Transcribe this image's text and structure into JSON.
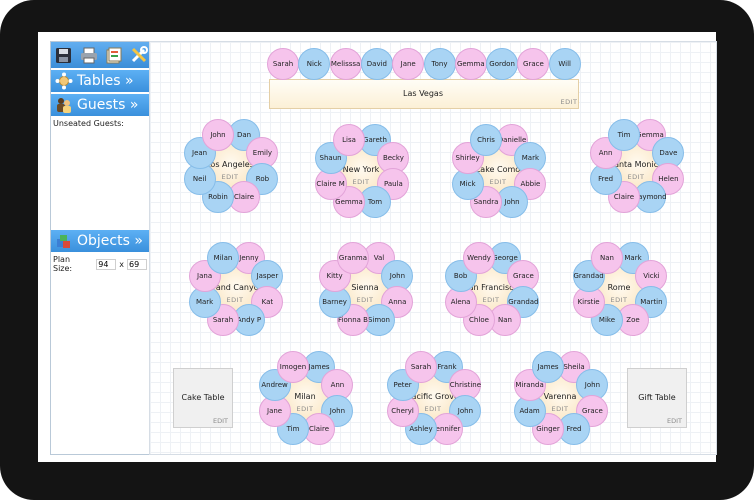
{
  "sidebar": {
    "toolbar": [
      {
        "name": "save-icon"
      },
      {
        "name": "print-icon"
      },
      {
        "name": "export-icon"
      },
      {
        "name": "settings-icon"
      }
    ],
    "tables_label": "Tables »",
    "guests_label": "Guests »",
    "unseated_label": "Unseated Guests:",
    "objects_label": "Objects »",
    "plan_size_label": "Plan Size:",
    "plan_width": "94",
    "plan_x": "x",
    "plan_height": "69"
  },
  "colors": {
    "accent": "#3c8ed8",
    "seat_blue": "#a9d4f4",
    "seat_pink": "#f6c4ec",
    "table": "#fbe8c8"
  },
  "banquet": {
    "name": "Las Vegas",
    "edit": "EDIT",
    "guests": [
      {
        "n": "Sarah",
        "c": "pink"
      },
      {
        "n": "Nick",
        "c": "blue"
      },
      {
        "n": "Melisssa",
        "c": "pink"
      },
      {
        "n": "David",
        "c": "blue"
      },
      {
        "n": "Jane",
        "c": "pink"
      },
      {
        "n": "Tony",
        "c": "blue"
      },
      {
        "n": "Gemma",
        "c": "pink"
      },
      {
        "n": "Gordon",
        "c": "blue"
      },
      {
        "n": "Grace",
        "c": "pink"
      },
      {
        "n": "Will",
        "c": "blue"
      }
    ]
  },
  "tables": [
    {
      "name": "Los Angeles",
      "edit": "EDIT",
      "guests": [
        {
          "n": "Dan",
          "c": "blue"
        },
        {
          "n": "Emily",
          "c": "pink"
        },
        {
          "n": "Rob",
          "c": "blue"
        },
        {
          "n": "Claire",
          "c": "pink"
        },
        {
          "n": "Robin",
          "c": "blue"
        },
        {
          "n": "Neil",
          "c": "blue"
        },
        {
          "n": "Jean",
          "c": "blue"
        },
        {
          "n": "John",
          "c": "pink"
        }
      ]
    },
    {
      "name": "New York",
      "edit": "EDIT",
      "guests": [
        {
          "n": "Gareth",
          "c": "blue"
        },
        {
          "n": "Becky",
          "c": "pink"
        },
        {
          "n": "Paula",
          "c": "pink"
        },
        {
          "n": "Tom",
          "c": "blue"
        },
        {
          "n": "Gemma",
          "c": "pink"
        },
        {
          "n": "Claire M",
          "c": "pink"
        },
        {
          "n": "Shaun",
          "c": "blue"
        },
        {
          "n": "Lisa",
          "c": "pink"
        }
      ]
    },
    {
      "name": "Lake Como",
      "edit": "EDIT",
      "guests": [
        {
          "n": "Danielle",
          "c": "pink"
        },
        {
          "n": "Mark",
          "c": "blue"
        },
        {
          "n": "Abbie",
          "c": "pink"
        },
        {
          "n": "John",
          "c": "blue"
        },
        {
          "n": "Sandra",
          "c": "pink"
        },
        {
          "n": "Mick",
          "c": "blue"
        },
        {
          "n": "Shirley",
          "c": "pink"
        },
        {
          "n": "Chris",
          "c": "blue"
        }
      ]
    },
    {
      "name": "Santa Monica",
      "edit": "EDIT",
      "guests": [
        {
          "n": "Gemma",
          "c": "pink"
        },
        {
          "n": "Dave",
          "c": "blue"
        },
        {
          "n": "Helen",
          "c": "pink"
        },
        {
          "n": "Raymond",
          "c": "blue"
        },
        {
          "n": "Claire",
          "c": "pink"
        },
        {
          "n": "Fred",
          "c": "blue"
        },
        {
          "n": "Ann",
          "c": "pink"
        },
        {
          "n": "Tim",
          "c": "blue"
        }
      ]
    },
    {
      "name": "Grand Canyon",
      "edit": "EDIT",
      "guests": [
        {
          "n": "Jenny",
          "c": "pink"
        },
        {
          "n": "Jasper",
          "c": "blue"
        },
        {
          "n": "Kat",
          "c": "pink"
        },
        {
          "n": "Andy P",
          "c": "blue"
        },
        {
          "n": "Sarah",
          "c": "pink"
        },
        {
          "n": "Mark",
          "c": "blue"
        },
        {
          "n": "Jana",
          "c": "pink"
        },
        {
          "n": "Milan",
          "c": "blue"
        }
      ]
    },
    {
      "name": "Sienna",
      "edit": "EDIT",
      "guests": [
        {
          "n": "Val",
          "c": "pink"
        },
        {
          "n": "John",
          "c": "blue"
        },
        {
          "n": "Anna",
          "c": "pink"
        },
        {
          "n": "Simon",
          "c": "blue"
        },
        {
          "n": "Fionna B",
          "c": "pink"
        },
        {
          "n": "Barney",
          "c": "blue"
        },
        {
          "n": "Kitty",
          "c": "pink"
        },
        {
          "n": "Granma",
          "c": "pink"
        }
      ]
    },
    {
      "name": "San Francisco",
      "edit": "EDIT",
      "guests": [
        {
          "n": "George",
          "c": "blue"
        },
        {
          "n": "Grace",
          "c": "pink"
        },
        {
          "n": "Grandad",
          "c": "blue"
        },
        {
          "n": "Nan",
          "c": "pink"
        },
        {
          "n": "Chloe",
          "c": "pink"
        },
        {
          "n": "Alena",
          "c": "pink"
        },
        {
          "n": "Bob",
          "c": "blue"
        },
        {
          "n": "Wendy",
          "c": "pink"
        }
      ]
    },
    {
      "name": "Rome",
      "edit": "EDIT",
      "guests": [
        {
          "n": "Mark",
          "c": "blue"
        },
        {
          "n": "Vicki",
          "c": "pink"
        },
        {
          "n": "Martin",
          "c": "blue"
        },
        {
          "n": "Zoe",
          "c": "pink"
        },
        {
          "n": "Mike",
          "c": "blue"
        },
        {
          "n": "Kirstie",
          "c": "pink"
        },
        {
          "n": "Grandad",
          "c": "blue"
        },
        {
          "n": "Nan",
          "c": "pink"
        }
      ]
    },
    {
      "name": "Milan",
      "edit": "EDIT",
      "guests": [
        {
          "n": "James",
          "c": "blue"
        },
        {
          "n": "Ann",
          "c": "pink"
        },
        {
          "n": "John",
          "c": "blue"
        },
        {
          "n": "Claire",
          "c": "pink"
        },
        {
          "n": "Tim",
          "c": "blue"
        },
        {
          "n": "Jane",
          "c": "pink"
        },
        {
          "n": "Andrew",
          "c": "blue"
        },
        {
          "n": "Imogen",
          "c": "pink"
        }
      ]
    },
    {
      "name": "Pacific Grove",
      "edit": "EDIT",
      "guests": [
        {
          "n": "Frank",
          "c": "blue"
        },
        {
          "n": "Christine",
          "c": "pink"
        },
        {
          "n": "John",
          "c": "blue"
        },
        {
          "n": "Jennifer",
          "c": "pink"
        },
        {
          "n": "Ashley",
          "c": "blue"
        },
        {
          "n": "Cheryl",
          "c": "pink"
        },
        {
          "n": "Peter",
          "c": "blue"
        },
        {
          "n": "Sarah",
          "c": "pink"
        }
      ]
    },
    {
      "name": "Varenna",
      "edit": "EDIT",
      "guests": [
        {
          "n": "Sheila",
          "c": "pink"
        },
        {
          "n": "John",
          "c": "blue"
        },
        {
          "n": "Grace",
          "c": "pink"
        },
        {
          "n": "Fred",
          "c": "blue"
        },
        {
          "n": "Ginger",
          "c": "pink"
        },
        {
          "n": "Adam",
          "c": "blue"
        },
        {
          "n": "Miranda",
          "c": "pink"
        },
        {
          "n": "James",
          "c": "blue"
        }
      ]
    }
  ],
  "objects": [
    {
      "name": "Cake Table",
      "edit": "EDIT"
    },
    {
      "name": "Gift Table",
      "edit": "EDIT"
    }
  ]
}
